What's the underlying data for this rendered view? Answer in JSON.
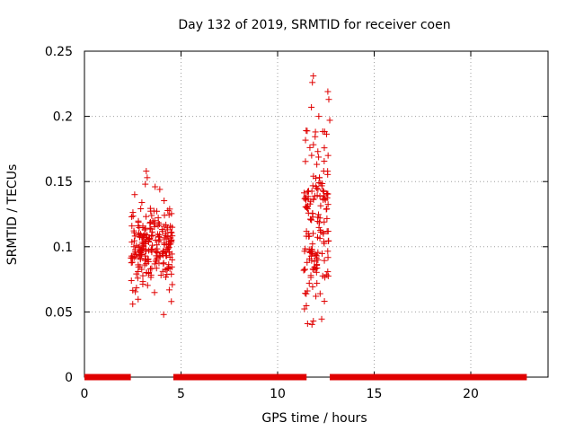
{
  "chart_data": {
    "type": "scatter",
    "title": "Day 132 of 2019, SRMTID for receiver coen",
    "xlabel": "GPS time / hours",
    "ylabel": "SRMTID / TECUs",
    "xlim": [
      0,
      24
    ],
    "ylim": [
      0,
      0.25
    ],
    "xticks": [
      0,
      5,
      10,
      15,
      20
    ],
    "yticks": [
      0,
      0.05,
      0.1,
      0.15,
      0.2,
      0.25
    ],
    "xtick_labels": [
      "0",
      "5",
      "10",
      "15",
      "20"
    ],
    "ytick_labels": [
      "0",
      "0.05",
      "0.1",
      "0.15",
      "0.2",
      "0.25"
    ],
    "grid": true,
    "marker": "+",
    "color": "#e00000",
    "zero_segments": [
      [
        0.0,
        2.4
      ],
      [
        4.6,
        11.5
      ],
      [
        12.7,
        22.9
      ]
    ],
    "series": [
      {
        "name": "SRMTID",
        "clusters": [
          {
            "x_range": [
              2.35,
              4.55
            ],
            "y_center": 0.1,
            "y_spread": 0.022,
            "count": 230,
            "seed": 11
          },
          {
            "x_range": [
              11.35,
              12.65
            ],
            "y_center": 0.12,
            "y_spread": 0.045,
            "count": 160,
            "seed": 29
          }
        ],
        "points": [
          [
            3.2,
            0.158
          ],
          [
            3.25,
            0.153
          ],
          [
            3.15,
            0.148
          ],
          [
            2.6,
            0.14
          ],
          [
            3.9,
            0.144
          ],
          [
            2.5,
            0.056
          ],
          [
            4.1,
            0.048
          ],
          [
            4.5,
            0.058
          ],
          [
            11.85,
            0.231
          ],
          [
            11.8,
            0.226
          ],
          [
            11.75,
            0.207
          ],
          [
            12.6,
            0.219
          ],
          [
            12.65,
            0.213
          ],
          [
            12.7,
            0.197
          ],
          [
            11.55,
            0.041
          ],
          [
            11.85,
            0.043
          ],
          [
            12.2,
            0.064
          ]
        ]
      }
    ]
  }
}
